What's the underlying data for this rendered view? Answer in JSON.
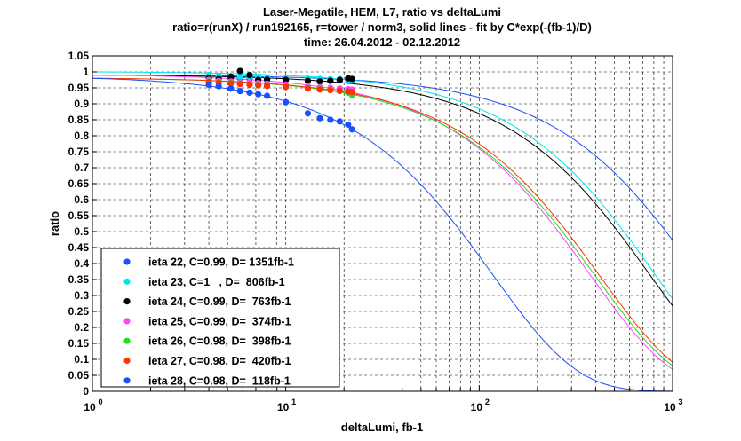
{
  "chart_data": {
    "type": "scatter",
    "title": "Laser-Megatile, HEM, L7, ratio vs deltaLumi",
    "subtitle": "ratio=r(runX) / run192165, r=tower / norm3, solid lines - fit by C*exp(-(fb-1)/D)",
    "time_label": "time: 26.04.2012 - 02.12.2012",
    "xlabel": "deltaLumi, fb-1",
    "ylabel": "ratio",
    "x_scale": "log",
    "xlim": [
      1,
      1000
    ],
    "ylim": [
      0,
      1.05
    ],
    "x_ticks": [
      {
        "base": "10",
        "exp": "0"
      },
      {
        "base": "10",
        "exp": "1"
      },
      {
        "base": "10",
        "exp": "2"
      },
      {
        "base": "10",
        "exp": "3"
      }
    ],
    "y_ticks": [
      "0",
      "0.05",
      "0.1",
      "0.15",
      "0.2",
      "0.25",
      "0.3",
      "0.35",
      "0.4",
      "0.45",
      "0.5",
      "0.55",
      "0.6",
      "0.65",
      "0.7",
      "0.75",
      "0.8",
      "0.85",
      "0.9",
      "0.95",
      "1",
      "1.05"
    ],
    "grid": true,
    "legend_position": "bottom-left",
    "series": [
      {
        "name": "ieta 22, C=0.99, D= 1351fb-1",
        "C": 0.99,
        "D": 1351,
        "color": "#1a4fff",
        "x": [
          4.0,
          4.5,
          5.2,
          5.8,
          6.5,
          7.2,
          8.0,
          10.0,
          13.0,
          15.0,
          17.0,
          19.0,
          21.0,
          22.0
        ],
        "y": [
          0.985,
          0.983,
          0.982,
          0.98,
          0.979,
          0.978,
          0.977,
          0.976,
          0.975,
          0.975,
          0.974,
          0.973,
          0.973,
          0.972
        ]
      },
      {
        "name": "ieta 23, C=1   , D=  806fb-1",
        "C": 1.0,
        "D": 806,
        "color": "#00e5ee",
        "x": [
          4.0,
          4.5,
          5.2,
          5.8,
          6.5,
          7.2,
          8.0,
          10.0,
          13.0,
          15.0,
          17.0,
          19.0,
          21.0,
          22.0
        ],
        "y": [
          0.99,
          0.988,
          0.987,
          0.985,
          0.984,
          0.983,
          0.982,
          0.98,
          0.979,
          0.978,
          0.977,
          0.977,
          0.976,
          0.975
        ]
      },
      {
        "name": "ieta 24, C=0.99, D=  763fb-1",
        "C": 0.99,
        "D": 763,
        "color": "#000000",
        "x": [
          4.0,
          4.5,
          5.2,
          5.8,
          6.5,
          7.2,
          8.0,
          10.0,
          13.0,
          15.0,
          17.0,
          19.0,
          21.0,
          22.0
        ],
        "y": [
          0.98,
          0.978,
          0.985,
          1.003,
          0.99,
          0.975,
          0.976,
          0.975,
          0.972,
          0.97,
          0.972,
          0.975,
          0.98,
          0.978
        ]
      },
      {
        "name": "ieta 25, C=0.99, D=  374fb-1",
        "C": 0.99,
        "D": 374,
        "color": "#ff44ff",
        "x": [
          4.0,
          4.5,
          5.2,
          5.8,
          6.5,
          7.2,
          8.0,
          10.0,
          13.0,
          15.0,
          17.0,
          19.0,
          21.0,
          22.0
        ],
        "y": [
          0.975,
          0.972,
          0.97,
          0.968,
          0.967,
          0.965,
          0.963,
          0.96,
          0.955,
          0.952,
          0.95,
          0.948,
          0.946,
          0.944
        ]
      },
      {
        "name": "ieta 26, C=0.98, D=  398fb-1",
        "C": 0.98,
        "D": 398,
        "color": "#22dd22",
        "x": [
          4.0,
          4.5,
          5.2,
          5.8,
          6.5,
          7.2,
          8.0,
          10.0,
          13.0,
          15.0,
          17.0,
          19.0,
          21.0,
          22.0
        ],
        "y": [
          0.97,
          0.968,
          0.966,
          0.964,
          0.962,
          0.96,
          0.958,
          0.955,
          0.95,
          0.947,
          0.944,
          0.94,
          0.935,
          0.928
        ]
      },
      {
        "name": "ieta 27, C=0.98, D=  420fb-1",
        "C": 0.98,
        "D": 420,
        "color": "#ff3300",
        "x": [
          4.0,
          4.5,
          5.2,
          5.8,
          6.5,
          7.2,
          8.0,
          10.0,
          13.0,
          15.0,
          17.0,
          19.0,
          21.0,
          22.0
        ],
        "y": [
          0.968,
          0.966,
          0.964,
          0.962,
          0.96,
          0.958,
          0.956,
          0.953,
          0.948,
          0.945,
          0.943,
          0.941,
          0.939,
          0.937
        ]
      },
      {
        "name": "ieta 28, C=0.98, D=  118fb-1",
        "C": 0.98,
        "D": 118,
        "color": "#1a4fff",
        "x": [
          4.0,
          4.5,
          5.2,
          5.8,
          6.5,
          7.2,
          8.0,
          10.0,
          13.0,
          15.0,
          17.0,
          19.0,
          21.0,
          22.0
        ],
        "y": [
          0.96,
          0.955,
          0.948,
          0.94,
          0.935,
          0.93,
          0.925,
          0.905,
          0.87,
          0.855,
          0.85,
          0.845,
          0.835,
          0.82
        ]
      }
    ]
  }
}
